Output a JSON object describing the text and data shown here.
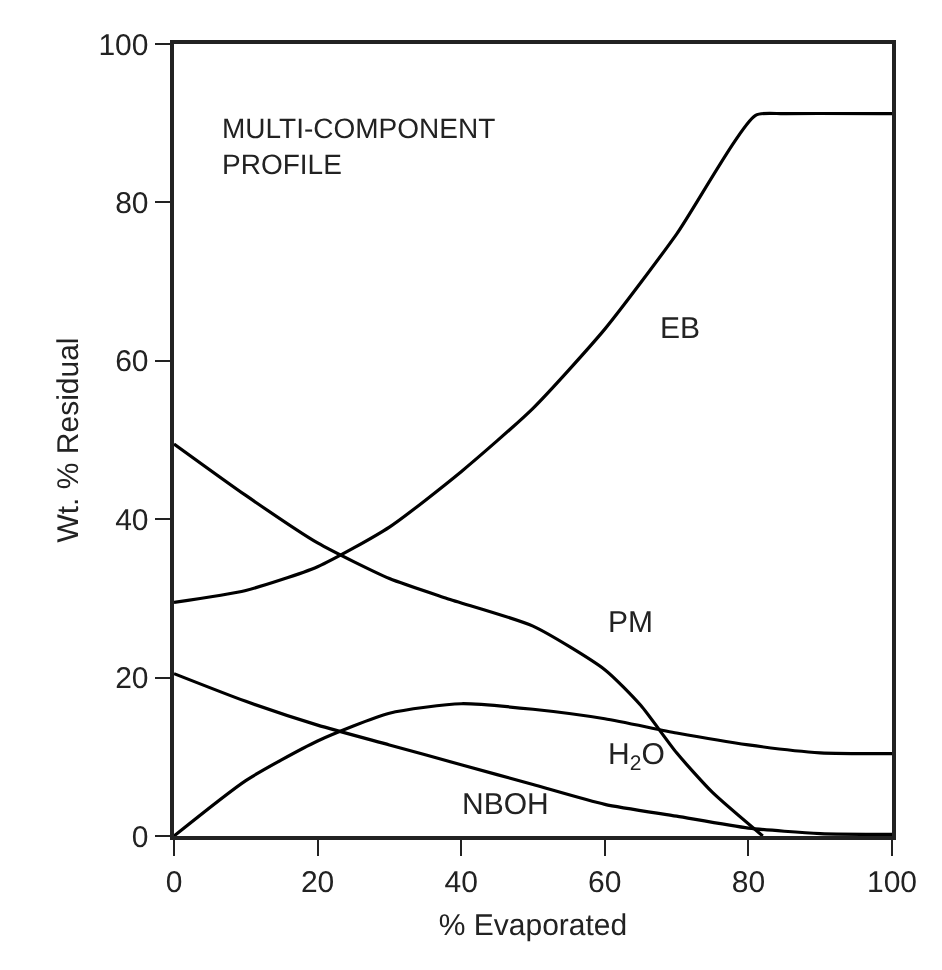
{
  "chart_data": {
    "type": "line",
    "xlabel": "% Evaporated",
    "ylabel": "Wt. % Residual",
    "annotations": [
      "MULTI-COMPONENT\nPROFILE"
    ],
    "xlim": [
      0,
      100
    ],
    "xticks": [
      0,
      20,
      40,
      60,
      80,
      100
    ],
    "ylim": [
      0,
      100
    ],
    "yticks": [
      0,
      20,
      40,
      60,
      80,
      100
    ],
    "legend": false,
    "marker": "none",
    "line_style": "solid",
    "series": [
      {
        "name": "EB",
        "color": "#000000",
        "x": [
          0,
          10,
          20,
          30,
          40,
          50,
          60,
          70,
          81,
          85,
          100
        ],
        "values": [
          29.5,
          31,
          34,
          39,
          46,
          54,
          64,
          76,
          91,
          91.2,
          91.2
        ]
      },
      {
        "name": "PM",
        "color": "#000000",
        "x": [
          0,
          10,
          20,
          30,
          38,
          50,
          60,
          65,
          70,
          75,
          82
        ],
        "values": [
          49.5,
          43,
          37,
          32.5,
          30,
          26.5,
          21,
          16.5,
          10.5,
          5.5,
          0
        ]
      },
      {
        "name": "H$_{2}$O",
        "color": "#000000",
        "x": [
          0,
          10,
          20,
          30,
          40,
          50,
          60,
          70,
          80,
          90,
          100
        ],
        "values": [
          0,
          7,
          12,
          15.5,
          16.7,
          16,
          14.8,
          13,
          11.5,
          10.5,
          10.4
        ]
      },
      {
        "name": "NBOH",
        "color": "#000000",
        "x": [
          0,
          10,
          20,
          30,
          40,
          50,
          60,
          70,
          80,
          90,
          100
        ],
        "values": [
          20.5,
          17,
          14,
          11.5,
          9,
          6.5,
          4,
          2.5,
          1,
          0.3,
          0.2
        ]
      }
    ]
  }
}
